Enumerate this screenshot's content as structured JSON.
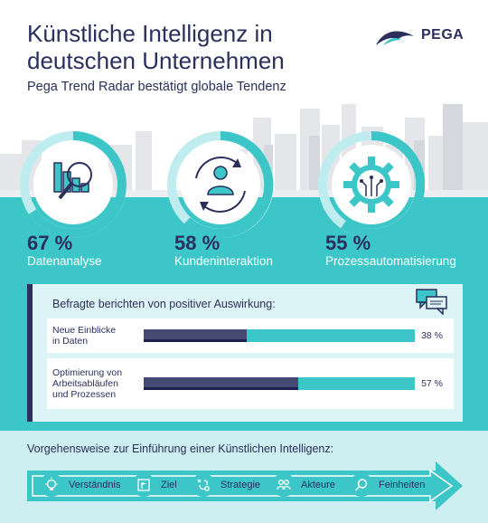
{
  "header": {
    "title_line1": "Künstliche Intelligenz in",
    "title_line2": "deutschen Unternehmen",
    "subtitle": "Pega Trend Radar bestätigt globale Tendenz",
    "logo_text": "PEGA"
  },
  "colors": {
    "teal": "#3cc6c7",
    "navy": "#2a2f5c",
    "light_teal": "#cdeff1"
  },
  "stats": [
    {
      "percent": "67 %",
      "label": "Datenanalyse",
      "icon": "bar-chart-magnifier-icon",
      "value": 67
    },
    {
      "percent": "58 %",
      "label": "Kundeninteraktion",
      "icon": "customer-cycle-icon",
      "value": 58
    },
    {
      "percent": "55 %",
      "label": "Prozessautomatisierung",
      "icon": "gear-circuit-icon",
      "value": 55
    }
  ],
  "impact": {
    "title": "Befragte berichten von positiver Auswirkung:",
    "icon": "chat-bubbles-icon"
  },
  "chart_data": {
    "type": "bar",
    "orientation": "horizontal",
    "title": "Befragte berichten von positiver Auswirkung:",
    "categories": [
      "Neue Einblicke in Daten",
      "Optimierung von Arbeitsabläufen und Prozessen"
    ],
    "category_lines": [
      [
        "Neue Einblicke",
        "in Daten"
      ],
      [
        "Optimierung von",
        "Arbeitsabläufen",
        "und Prozessen"
      ]
    ],
    "values": [
      38,
      57
    ],
    "value_labels": [
      "38 %",
      "57 %"
    ],
    "xlim": [
      0,
      100
    ],
    "grid": false,
    "legend": "none"
  },
  "steps": {
    "title": "Vorgehensweise zur Einführung einer Künstlichen Intelligenz:",
    "items": [
      {
        "label": "Verständnis",
        "icon": "lightbulb-icon"
      },
      {
        "label": "Ziel",
        "icon": "flag-icon"
      },
      {
        "label": "Strategie",
        "icon": "strategy-icon"
      },
      {
        "label": "Akteure",
        "icon": "people-icon"
      },
      {
        "label": "Feinheiten",
        "icon": "magnifier-icon"
      }
    ]
  }
}
